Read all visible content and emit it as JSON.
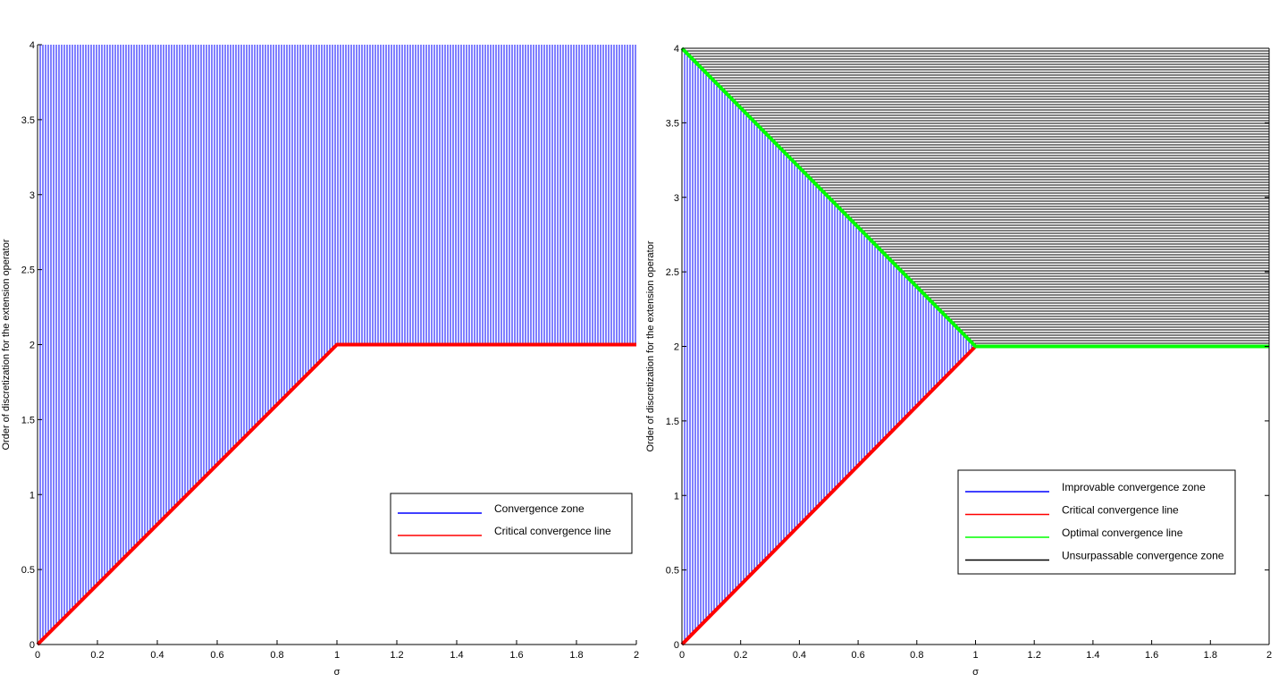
{
  "chart_data": [
    {
      "type": "area",
      "xlabel": "σ",
      "ylabel": "Order of discretization for the extension operator",
      "xlim": [
        0,
        2
      ],
      "ylim": [
        0,
        4
      ],
      "xticks": [
        0,
        0.2,
        0.4,
        0.6,
        0.8,
        1,
        1.2,
        1.4,
        1.6,
        1.8,
        2
      ],
      "yticks": [
        0,
        0.5,
        1,
        1.5,
        2,
        2.5,
        3,
        3.5,
        4
      ],
      "xtick_labels": [
        "0",
        "0.2",
        "0.4",
        "0.6",
        "0.8",
        "1",
        "1.2",
        "1.4",
        "1.6",
        "1.8",
        "2"
      ],
      "ytick_labels": [
        "0",
        "0.5",
        "1",
        "1.5",
        "2",
        "2.5",
        "3",
        "3.5",
        "4"
      ],
      "legend_position": "lower-right",
      "series": [
        {
          "name": "Convergence zone",
          "kind": "vertical-hatch",
          "color": "#0000ff",
          "x": [
            0,
            1,
            2
          ],
          "lower": [
            0,
            2,
            2
          ],
          "upper": [
            4,
            4,
            4
          ]
        },
        {
          "name": "Critical convergence line",
          "kind": "line",
          "color": "#ff0000",
          "x": [
            0,
            1,
            2
          ],
          "y": [
            0,
            2,
            2
          ]
        }
      ]
    },
    {
      "type": "area",
      "xlabel": "σ",
      "ylabel": "Order of discretization for the extension operator",
      "xlim": [
        0,
        2
      ],
      "ylim": [
        0,
        4
      ],
      "xticks": [
        0,
        0.2,
        0.4,
        0.6,
        0.8,
        1,
        1.2,
        1.4,
        1.6,
        1.8,
        2
      ],
      "yticks": [
        0,
        0.5,
        1,
        1.5,
        2,
        2.5,
        3,
        3.5,
        4
      ],
      "xtick_labels": [
        "0",
        "0.2",
        "0.4",
        "0.6",
        "0.8",
        "1",
        "1.2",
        "1.4",
        "1.6",
        "1.8",
        "2"
      ],
      "ytick_labels": [
        "0",
        "0.5",
        "1",
        "1.5",
        "2",
        "2.5",
        "3",
        "3.5",
        "4"
      ],
      "legend_position": "lower-right",
      "series": [
        {
          "name": "Improvable convergence zone",
          "kind": "vertical-hatch",
          "color": "#0000ff",
          "x": [
            0,
            1
          ],
          "lower": [
            0,
            2
          ],
          "upper": [
            4,
            2
          ]
        },
        {
          "name": "Critical convergence line",
          "kind": "line",
          "color": "#ff0000",
          "x": [
            0,
            1
          ],
          "y": [
            0,
            2
          ]
        },
        {
          "name": "Optimal convergence line",
          "kind": "line",
          "color": "#00ff00",
          "x": [
            0,
            1,
            2
          ],
          "y": [
            4,
            2,
            2
          ]
        },
        {
          "name": "Unsurpassable convergence zone",
          "kind": "horizontal-hatch",
          "color": "#000000",
          "x": [
            0,
            1,
            2
          ],
          "lower": [
            4,
            2,
            2
          ],
          "upper": [
            4,
            4,
            4
          ]
        }
      ]
    }
  ]
}
